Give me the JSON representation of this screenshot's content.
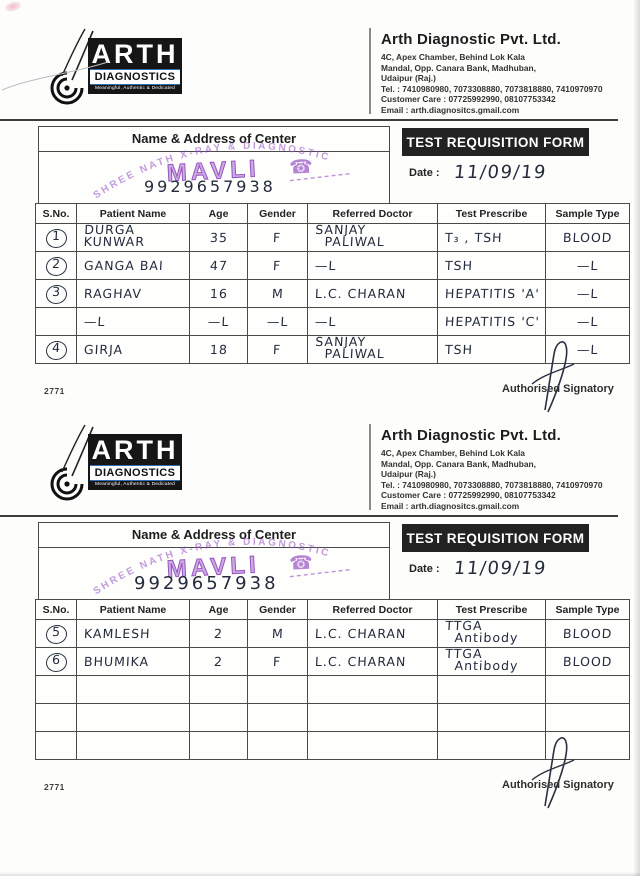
{
  "colors": {
    "stamp_purple": "#9a55c4",
    "ink_blue_black": "#232b3c",
    "header_black": "#222222",
    "logo_accent_blue": "#2f6fb4"
  },
  "letterhead": {
    "logo_text": "ARTH",
    "logo_sub": "DIAGNOSTICS",
    "logo_tagline": "Meaningful, Authentic & Dedicated",
    "company": "Arth Diagnostic Pvt. Ltd.",
    "address_line1": "4C, Apex Chamber, Behind Lok Kala",
    "address_line2": "Mandal, Opp. Canara Bank, Madhuban,",
    "address_line3": "Udaipur (Raj.)",
    "tel": "Tel. : 7410980980, 7073308880, 7073818880, 7410970970",
    "customer_care": "Customer Care : 07725992990, 08107753342",
    "email": "Email : arth.diagnositcs.gmail.com"
  },
  "center_box": {
    "title": "Name & Address of Center",
    "stamp_arc": "SHREE NATH X-RAY & DIAGNOSTIC",
    "stamp_name": "MAVLI",
    "stamp_phone_icon": "☎",
    "phone_number": "9929657938"
  },
  "requisition": {
    "title": "TEST REQUISITION FORM",
    "date_label": "Date :",
    "date_value": "11/09/19"
  },
  "footer": {
    "serial": "2771",
    "signatory": "Authorised Signatory"
  },
  "table": {
    "headers": [
      "S.No.",
      "Patient Name",
      "Age",
      "Gender",
      "Referred Doctor",
      "Test Prescribe",
      "Sample Type"
    ]
  },
  "forms": [
    {
      "rows": [
        {
          "sno": "1",
          "cells": [
            "DURGA KUNWAR",
            "35",
            "F",
            "SANJAY\n  PALIWAL",
            "T₃ , TSH",
            "BLOOD"
          ]
        },
        {
          "sno": "2",
          "cells": [
            "GANGA BAI",
            "47",
            "F",
            "—L",
            "TSH",
            "—L"
          ]
        },
        {
          "sno": "3",
          "cells": [
            "RAGHAV",
            "16",
            "M",
            "L.C. CHARAN",
            "HEPATITIS 'A'",
            "—L"
          ]
        },
        {
          "sno": "",
          "cells": [
            "—L",
            "—L",
            "—L",
            "—L",
            "HEPATITIS 'C'",
            "—L"
          ]
        },
        {
          "sno": "4",
          "cells": [
            "GIRJA",
            "18",
            "F",
            "SANJAY\n  PALIWAL",
            "TSH",
            "—L"
          ]
        }
      ]
    },
    {
      "rows": [
        {
          "sno": "5",
          "cells": [
            "KAMLESH",
            "2",
            "M",
            "L.C. CHARAN",
            "TTGA\n  Antibody",
            "BLOOD"
          ]
        },
        {
          "sno": "6",
          "cells": [
            "BHUMIKA",
            "2",
            "F",
            "L.C. CHARAN",
            "TTGA\n  Antibody",
            "BLOOD"
          ]
        },
        {
          "sno": "",
          "cells": [
            "",
            "",
            "",
            "",
            "",
            ""
          ]
        },
        {
          "sno": "",
          "cells": [
            "",
            "",
            "",
            "",
            "",
            ""
          ]
        },
        {
          "sno": "",
          "cells": [
            "",
            "",
            "",
            "",
            "",
            ""
          ]
        }
      ]
    }
  ]
}
